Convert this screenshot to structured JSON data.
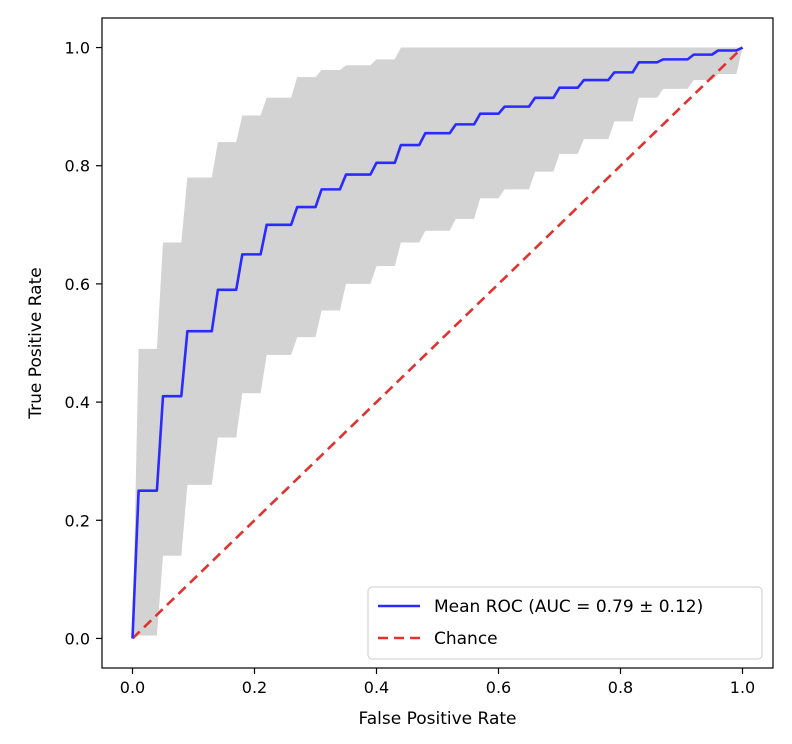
{
  "chart_data": {
    "type": "line",
    "title": "",
    "xlabel": "False Positive Rate",
    "ylabel": "True Positive Rate",
    "xlim": [
      -0.05,
      1.05
    ],
    "ylim": [
      -0.05,
      1.05
    ],
    "xticks": [
      0.0,
      0.2,
      0.4,
      0.6,
      0.8,
      1.0
    ],
    "yticks": [
      0.0,
      0.2,
      0.4,
      0.6,
      0.8,
      1.0
    ],
    "xtick_labels": [
      "0.0",
      "0.2",
      "0.4",
      "0.6",
      "0.8",
      "1.0"
    ],
    "ytick_labels": [
      "0.0",
      "0.2",
      "0.4",
      "0.6",
      "0.8",
      "1.0"
    ],
    "grid": false,
    "legend_position": "lower-right",
    "series": [
      {
        "name": "Mean ROC (AUC = 0.79 ± 0.12)",
        "color": "#2b2bff",
        "style": "solid",
        "x": [
          0.0,
          0.01,
          0.04,
          0.05,
          0.08,
          0.09,
          0.13,
          0.14,
          0.17,
          0.18,
          0.21,
          0.22,
          0.26,
          0.27,
          0.3,
          0.31,
          0.34,
          0.35,
          0.39,
          0.4,
          0.43,
          0.44,
          0.47,
          0.48,
          0.52,
          0.53,
          0.56,
          0.57,
          0.6,
          0.61,
          0.65,
          0.66,
          0.69,
          0.7,
          0.73,
          0.74,
          0.78,
          0.79,
          0.82,
          0.83,
          0.86,
          0.87,
          0.91,
          0.92,
          0.95,
          0.96,
          0.99,
          1.0
        ],
        "y": [
          0.0,
          0.25,
          0.25,
          0.41,
          0.41,
          0.52,
          0.52,
          0.59,
          0.59,
          0.65,
          0.65,
          0.7,
          0.7,
          0.73,
          0.73,
          0.76,
          0.76,
          0.785,
          0.785,
          0.805,
          0.805,
          0.835,
          0.835,
          0.855,
          0.855,
          0.87,
          0.87,
          0.888,
          0.888,
          0.9,
          0.9,
          0.915,
          0.915,
          0.932,
          0.932,
          0.945,
          0.945,
          0.958,
          0.958,
          0.975,
          0.975,
          0.98,
          0.98,
          0.988,
          0.988,
          0.995,
          0.995,
          1.0
        ]
      },
      {
        "name": "Chance",
        "color": "#e0322f",
        "style": "dashed",
        "x": [
          0.0,
          1.0
        ],
        "y": [
          0.0,
          1.0
        ]
      }
    ],
    "band": {
      "color": "#d3d3d3",
      "x": [
        0.0,
        0.01,
        0.04,
        0.05,
        0.08,
        0.09,
        0.13,
        0.14,
        0.17,
        0.18,
        0.21,
        0.22,
        0.26,
        0.27,
        0.3,
        0.31,
        0.34,
        0.35,
        0.39,
        0.4,
        0.43,
        0.44,
        0.47,
        0.48,
        0.52,
        0.53,
        0.56,
        0.57,
        0.6,
        0.61,
        0.65,
        0.66,
        0.69,
        0.7,
        0.73,
        0.74,
        0.78,
        0.79,
        0.82,
        0.83,
        0.86,
        0.87,
        0.91,
        0.92,
        0.95,
        0.96,
        0.99,
        1.0
      ],
      "upper": [
        0.0,
        0.49,
        0.49,
        0.67,
        0.67,
        0.78,
        0.78,
        0.84,
        0.84,
        0.885,
        0.885,
        0.915,
        0.915,
        0.95,
        0.95,
        0.962,
        0.962,
        0.97,
        0.97,
        0.98,
        0.98,
        1.0,
        1.0,
        1.0,
        1.0,
        1.0,
        1.0,
        1.0,
        1.0,
        1.0,
        1.0,
        1.0,
        1.0,
        1.0,
        1.0,
        1.0,
        1.0,
        1.0,
        1.0,
        1.0,
        1.0,
        1.0,
        1.0,
        1.0,
        1.0,
        1.0,
        1.0,
        1.0
      ],
      "lower": [
        0.0,
        0.005,
        0.005,
        0.14,
        0.14,
        0.26,
        0.26,
        0.34,
        0.34,
        0.415,
        0.415,
        0.48,
        0.48,
        0.51,
        0.51,
        0.555,
        0.555,
        0.6,
        0.6,
        0.63,
        0.63,
        0.67,
        0.67,
        0.69,
        0.69,
        0.71,
        0.71,
        0.745,
        0.745,
        0.76,
        0.76,
        0.79,
        0.79,
        0.82,
        0.82,
        0.845,
        0.845,
        0.875,
        0.875,
        0.915,
        0.915,
        0.93,
        0.93,
        0.945,
        0.945,
        0.955,
        0.955,
        1.0
      ]
    }
  }
}
